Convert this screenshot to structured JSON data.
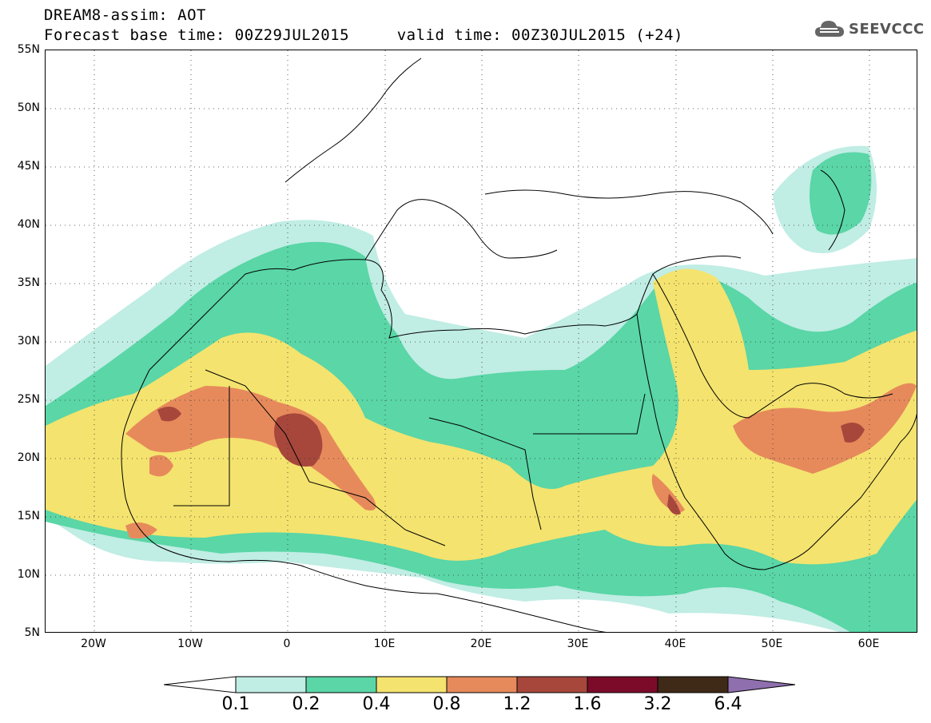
{
  "title_line1": "DREAM8-assim: AOT",
  "title_line2": "Forecast base time: 00Z29JUL2015     valid time: 00Z30JUL2015 (+24)",
  "logo": {
    "text": "SEEVCCC",
    "icon": "cloud-icon"
  },
  "map": {
    "variable": "AOT",
    "projection": "lat-lon",
    "lon_range": [
      -25,
      65
    ],
    "lat_range": [
      5,
      55
    ],
    "lat_labels": [
      "55N",
      "50N",
      "45N",
      "40N",
      "35N",
      "30N",
      "25N",
      "20N",
      "15N",
      "10N",
      "5N"
    ],
    "lon_labels": [
      "20W",
      "10W",
      "0",
      "10E",
      "20E",
      "30E",
      "40E",
      "50E",
      "60E"
    ],
    "grid": "dotted"
  },
  "colorbar": {
    "labels": [
      "0.1",
      "0.2",
      "0.4",
      "0.8",
      "1.2",
      "1.6",
      "3.2",
      "6.4"
    ],
    "colors": [
      "#ffffff",
      "#c0ede4",
      "#5ad6a7",
      "#f4e36e",
      "#e68a5c",
      "#a7473c",
      "#7c0b2a",
      "#3f2a17",
      "#8f6fae"
    ]
  }
}
